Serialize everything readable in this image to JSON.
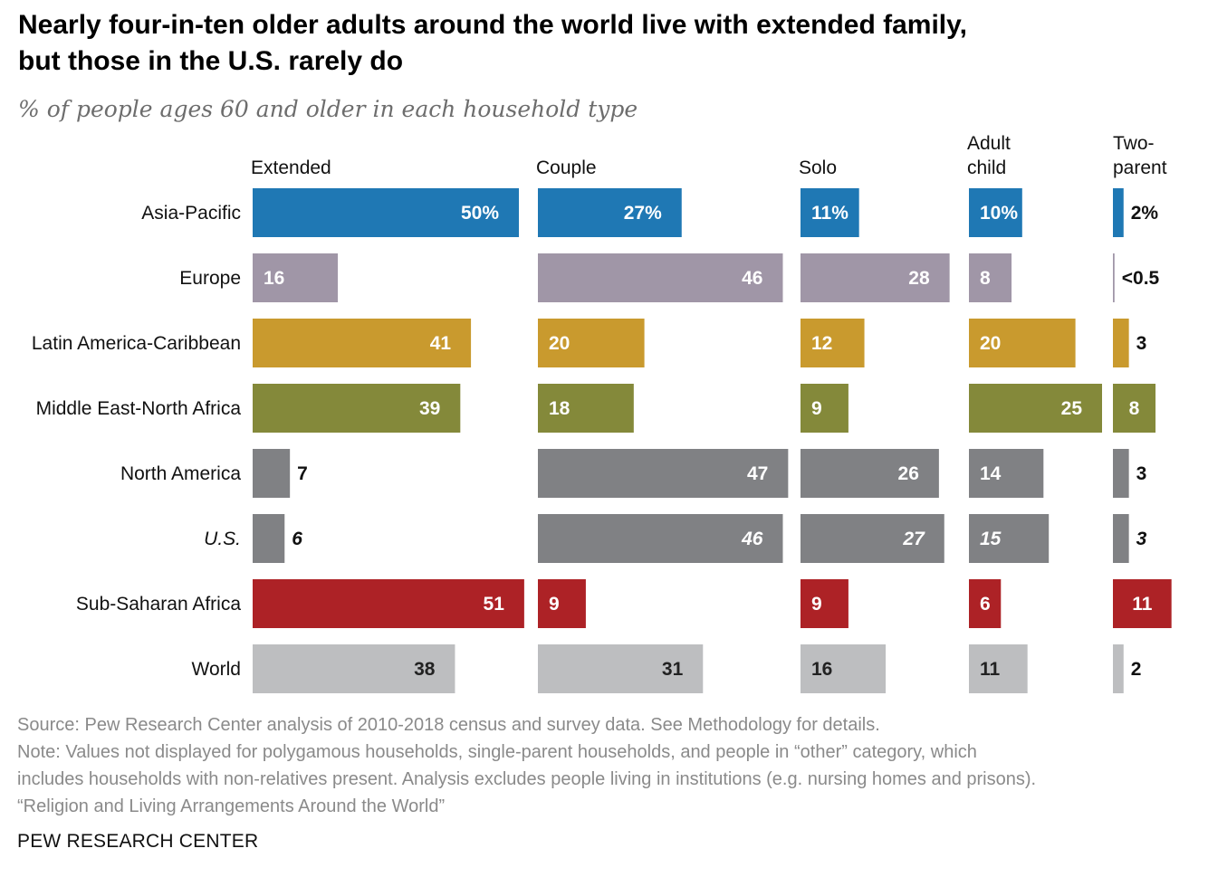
{
  "title_lines": [
    "Nearly four-in-ten older adults around the world live with extended family,",
    "but those in the U.S. rarely do"
  ],
  "subtitle": "% of people ages 60 and older in each household type",
  "chart_data": {
    "type": "bar",
    "orientation": "horizontal",
    "layout": "small-multiples",
    "categories": [
      "Asia-Pacific",
      "Europe",
      "Latin America-Caribbean",
      "Middle East-North Africa",
      "North America",
      "U.S.",
      "Sub-Saharan Africa",
      "World"
    ],
    "series": [
      {
        "name": "Extended",
        "header_lines": [
          "Extended"
        ],
        "values": [
          50,
          16,
          41,
          39,
          7,
          6,
          51,
          38
        ],
        "labels": [
          "50%",
          "16",
          "41",
          "39",
          "7",
          "6",
          "51",
          "38"
        ]
      },
      {
        "name": "Couple",
        "header_lines": [
          "Couple"
        ],
        "values": [
          27,
          46,
          20,
          18,
          47,
          46,
          9,
          31
        ],
        "labels": [
          "27%",
          "46",
          "20",
          "18",
          "47",
          "46",
          "9",
          "31"
        ]
      },
      {
        "name": "Solo",
        "header_lines": [
          "Solo"
        ],
        "values": [
          11,
          28,
          12,
          9,
          26,
          27,
          9,
          16
        ],
        "labels": [
          "11%",
          "28",
          "12",
          "9",
          "26",
          "27",
          "9",
          "16"
        ]
      },
      {
        "name": "Adult child",
        "header_lines": [
          "Adult",
          "child"
        ],
        "values": [
          10,
          8,
          20,
          25,
          14,
          15,
          6,
          11
        ],
        "labels": [
          "10%",
          "8",
          "20",
          "25",
          "14",
          "15",
          "6",
          "11"
        ]
      },
      {
        "name": "Two-parent",
        "header_lines": [
          "Two-",
          "parent"
        ],
        "values": [
          2,
          0.3,
          3,
          8,
          3,
          3,
          11,
          2
        ],
        "labels": [
          "2%",
          "<0.5",
          "3",
          "8",
          "3",
          "3",
          "11",
          "2"
        ]
      }
    ],
    "italic_categories": [
      "U.S."
    ],
    "colors": {
      "Asia-Pacific": "#1f78b4",
      "Europe": "#a096a7",
      "Latin America-Caribbean": "#c99a2e",
      "Middle East-North Africa": "#84893a",
      "North America": "#808184",
      "U.S.": "#808184",
      "Sub-Saharan Africa": "#ad2226",
      "World": "#bdbec0"
    },
    "label_colors": {
      "Asia-Pacific": "#ffffff",
      "Europe": "#ffffff",
      "Latin America-Caribbean": "#ffffff",
      "Middle East-North Africa": "#ffffff",
      "North America": "#ffffff",
      "U.S.": "#ffffff",
      "Sub-Saharan Africa": "#ffffff",
      "World": "#222222"
    }
  },
  "footer": {
    "source": "Source: Pew Research Center analysis of 2010-2018 census and survey data. See Methodology for details.",
    "note_lines": [
      "Note: Values not displayed for polygamous households, single-parent households, and people in “other” category, which",
      "includes households with non-relatives present. Analysis excludes people living in institutions (e.g. nursing homes and prisons).",
      "“Religion and Living Arrangements Around the World”"
    ],
    "brand": "PEW RESEARCH CENTER"
  }
}
